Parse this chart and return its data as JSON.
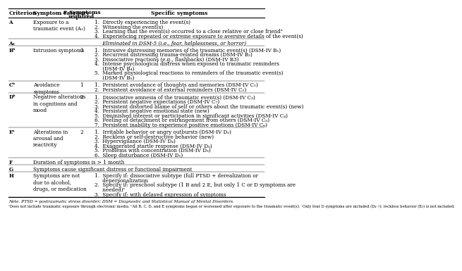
{
  "background_color": "#ffffff",
  "headers": [
    "Criterion",
    "Symptom category",
    "# Symptoms\nrequired",
    "Specific symptoms"
  ],
  "rows": [
    {
      "criterion": "A",
      "category": "Exposure to a\ntraumatic event (A₁)",
      "required": "",
      "symptoms": [
        "1.  Directly experiencing the event(s)",
        "2.  Witnessing the event(s)",
        "3.  Learning that the event(s) occurred to a close relative or close friendᵃ",
        "4.  Experiencing repeated or extreme exposure to aversive details of the event(s)"
      ]
    },
    {
      "criterion": "A₂",
      "category": "",
      "required": "",
      "symptoms": [
        "     Eliminated in DSM-5 (i.e., fear, helplessness, or horror)"
      ],
      "italic": true
    },
    {
      "criterion": "Bᵇ",
      "category": "Intrusion symptoms",
      "required": "1",
      "symptoms": [
        "1.  Intrusive distressing memories of the traumatic event(s) (DSM-IV B₁)",
        "2.  Recurrent distressing trauma-related dreams (DSM-IV B₂)",
        "3.  Dissociative reactions (e.g., flashbacks) (DSM-IV B3)",
        "4.  Intense psychological distress when exposed to traumatic reminders",
        "     (DSM-IV B₄)",
        "5.  Marked physiological reactions to reminders of the traumatic event(s)",
        "     (DSM-IV B₅)"
      ]
    },
    {
      "criterion": "Cᵇ",
      "category": "Avoidance\nsymptoms",
      "required": "1",
      "symptoms": [
        "1.  Persistent avoidance of thoughts and memories (DSM-IV C₁)",
        "2.  Persistent avoidance of external reminders (DSM-IV C₂)"
      ]
    },
    {
      "criterion": "Dᵇ",
      "category": "Negative alterations\nin cognitions and\nmood",
      "required": "2",
      "symptoms": [
        "1.  Dissociative amnesia of the traumatic event(s) (DSM-IV C₃)",
        "2.  Persistent negative expectations (DSM-IV C₇)",
        "3.  Persistent distorted blame of self or others about the traumatic event(s) (new)",
        "4.  Persistent negative emotional state (new)",
        "5.  Diminished interest or participation in significant activities (DSM-IV C₄)",
        "6.  Feeling of detachment or estrangement from others (DSM-IV C₅)",
        "7.  Persistent inability to experience positive emotions (DSM-IV C₆)"
      ]
    },
    {
      "criterion": "Eᵃ",
      "category": "Alterations in\narousal and\nreactivity",
      "required": "2",
      "symptoms": [
        "1.  Irritable behavior or angry outbursts (DSM-IV D₂)",
        "2.  Reckless or self-destructive behavior (new)",
        "3.  Hypervigilance (DSM-IV D₄)",
        "4.  Exaggerated startle response (DSM-IV D₅)",
        "5.  Problems with concentration (DSM-IV D₃)",
        "6.  Sleep disturbance (DSM-IV D₁)"
      ]
    },
    {
      "criterion": "F",
      "category": "",
      "required": "",
      "symptoms": [
        "Duration of symptoms is > 1 month"
      ],
      "full_width": true
    },
    {
      "criterion": "G",
      "category": "",
      "required": "",
      "symptoms": [
        "Symptoms cause significant distress or functional impairment"
      ],
      "full_width": true
    },
    {
      "criterion": "H",
      "category": "Symptoms are not\ndue to alcohol,\ndrugs, or medication",
      "required": "",
      "symptoms": [
        "1.  Specify if: dissociative subtype (full PTSD + derealization or",
        "     depersonalization",
        "2.  Specify if: preschool subtype (1 B and 2 E, but only 1 C or D symptoms are",
        "     needed)ᶜ",
        "3.  Specify if: with delayed expression of symptoms"
      ]
    }
  ],
  "footnote1": "Note. PTSD = postraumatic stress disorder; DSM = Diagnostic and Statistical Manual of Mental Disorders.",
  "footnote2": "ᵃDoes not include traumatic exposure through electronic media. ᵇAll B, C, D, and E symptoms began or worsened after exposure to the traumatic event(s). ᶜOnly four D symptoms are included (D₄₋₇); reckless behavior (E₂) is not included.",
  "fs": 5.2,
  "hfs": 5.5
}
